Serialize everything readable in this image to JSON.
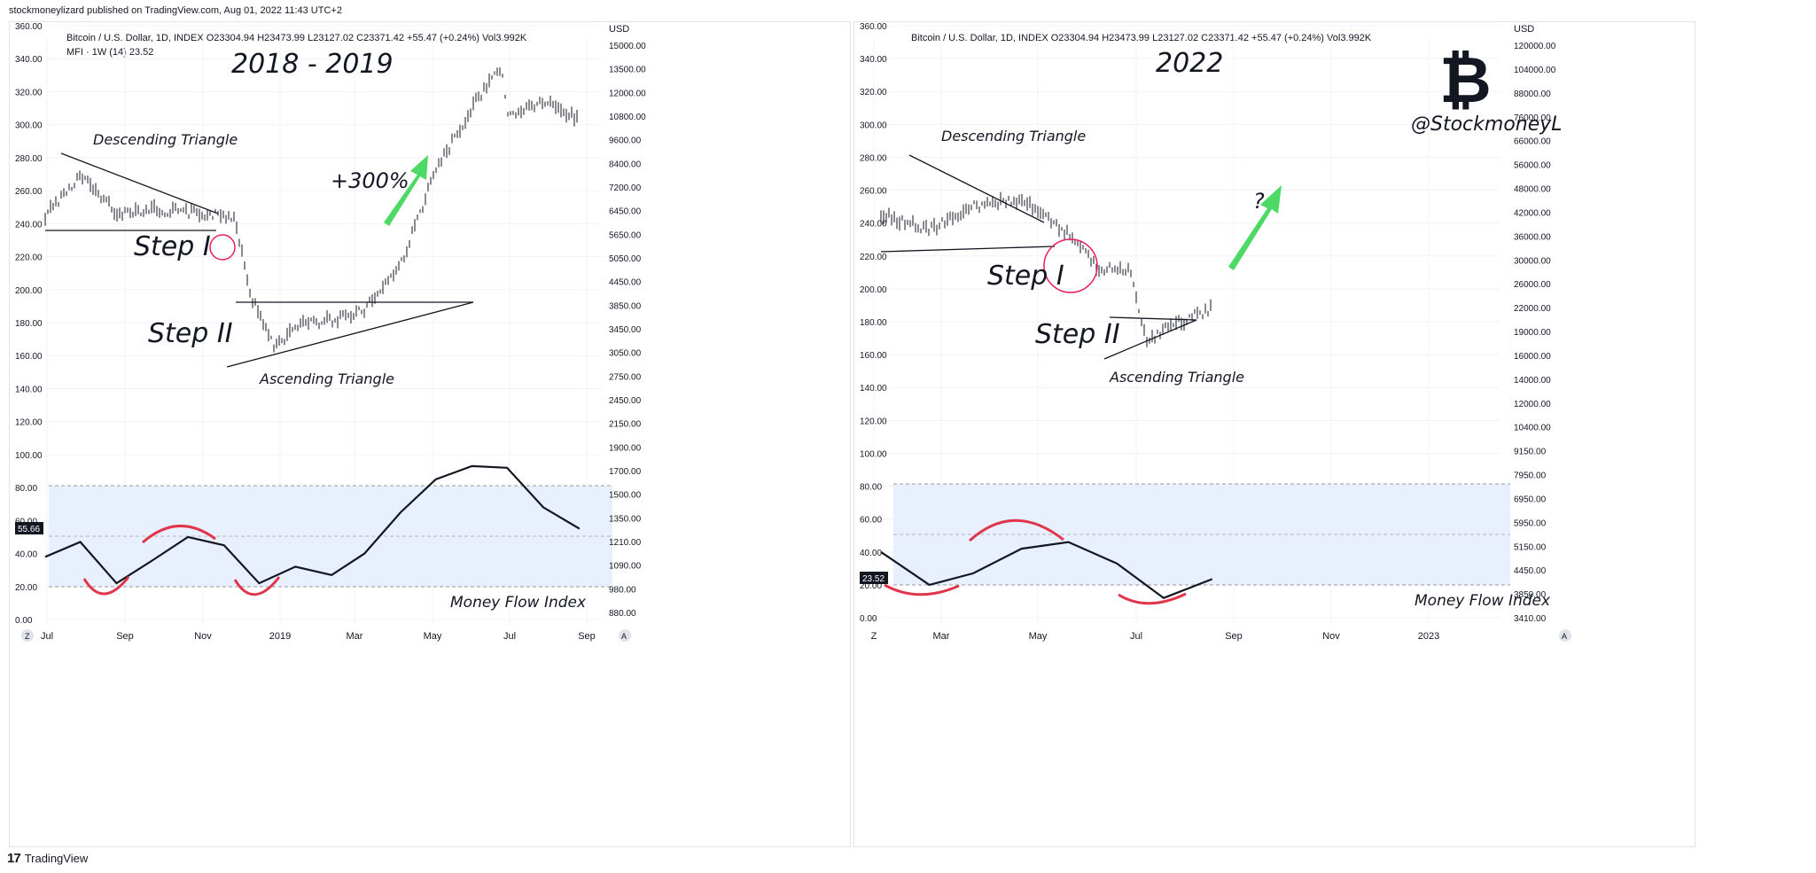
{
  "header": {
    "published": "stockmoneylizard published on TradingView.com, Aug 01, 2022 11:43 UTC+2"
  },
  "footer": {
    "brand": "TradingView",
    "logo_icon": "tradingview-logo-icon"
  },
  "colors": {
    "candle": "#131722",
    "mfi_band": "#e8f0fe",
    "red_arc": "#e0354a",
    "circle": "#e91e63",
    "arrow_green": "#4cd964",
    "axis_text": "#131722",
    "grid": "#f0f3fa"
  },
  "left_chart": {
    "info_line": "Bitcoin / U.S. Dollar, 1D, INDEX  O23304.94  H23473.99  L23127.02  C23371.42  +55.47 (+0.24%)  Vol3.992K",
    "mfi_line": "MFI · 1W (14)  23.52",
    "currency": "USD",
    "title": "2018 - 2019",
    "descending_label": "Descending Triangle",
    "ascending_label": "Ascending Triangle",
    "step1": "Step I",
    "step2": "Step II",
    "gain": "+300%",
    "mfi_label": "Money Flow Index",
    "mfi_badge": "55.66",
    "x_ticks": [
      "Jul",
      "Sep",
      "Nov",
      "2019",
      "Mar",
      "May",
      "Jul",
      "Sep"
    ],
    "z_button": "Z",
    "a_button": "A"
  },
  "right_chart": {
    "info_line": "Bitcoin / U.S. Dollar, 1D, INDEX  O23304.94  H23473.99  L23127.02  C23371.42  +55.47 (+0.24%)  Vol3.992K",
    "currency": "USD",
    "title": "2022",
    "handle": "@StockmoneyL",
    "descending_label": "Descending Triangle",
    "ascending_label": "Ascending Triangle",
    "step1": "Step I",
    "step2": "Step II",
    "question": "?",
    "mfi_label": "Money Flow Index",
    "mfi_badge": "23.52",
    "x_ticks": [
      "Z",
      "Mar",
      "May",
      "Jul",
      "Sep",
      "Nov",
      "2023"
    ],
    "a_button": "A",
    "bitcoin_icon": "bitcoin-logo-icon"
  },
  "chart_data": [
    {
      "type": "line",
      "title": "2018 - 2019",
      "left_axis": {
        "ticks": [
          "360.00",
          "340.00",
          "320.00",
          "300.00",
          "280.00",
          "260.00",
          "240.00",
          "220.00",
          "200.00",
          "180.00",
          "160.00",
          "140.00",
          "120.00",
          "100.00",
          "80.00",
          "60.00",
          "40.00",
          "20.00",
          "0.00"
        ],
        "ylim": [
          0,
          360
        ]
      },
      "right_axis": {
        "label": "USD",
        "scale": "log",
        "ticks": [
          "15000.00",
          "13500.00",
          "12000.00",
          "10800.00",
          "9600.00",
          "8400.00",
          "7200.00",
          "6450.00",
          "5650.00",
          "5050.00",
          "4450.00",
          "3850.00",
          "3450.00",
          "3050.00",
          "2750.00",
          "2450.00",
          "2150.00",
          "1900.00",
          "1700.00",
          "1500.00",
          "1350.00",
          "1210.00",
          "1090.00",
          "980.00",
          "880.00"
        ]
      },
      "x_ticks": [
        "Jul",
        "Sep",
        "Nov",
        "2019",
        "Mar",
        "May",
        "Jul",
        "Sep"
      ],
      "price_series": {
        "name": "",
        "x": [
          "2018-06",
          "2018-07",
          "2018-08",
          "2018-09",
          "2018-10",
          "2018-11-10",
          "2018-11-25",
          "2018-12-15",
          "2019-01",
          "2019-02",
          "2019-03",
          "2019-04-01",
          "2019-05",
          "2019-06",
          "2019-06-26",
          "2019-07",
          "2019-08",
          "2019-09"
        ],
        "y": [
          6400,
          7800,
          6500,
          6600,
          6500,
          6350,
          4200,
          3300,
          3700,
          3800,
          4000,
          5000,
          8000,
          11000,
          13500,
          10500,
          11300,
          10300
        ]
      },
      "mfi_series": {
        "name": "Money Flow Index",
        "x": [
          "2018-06",
          "2018-07",
          "2018-08",
          "2018-09",
          "2018-10",
          "2018-11",
          "2018-12",
          "2019-01",
          "2019-02",
          "2019-03",
          "2019-04",
          "2019-05",
          "2019-06",
          "2019-07",
          "2019-08",
          "2019-09"
        ],
        "y": [
          38,
          47,
          22,
          36,
          50,
          45,
          22,
          32,
          27,
          40,
          65,
          85,
          93,
          92,
          68,
          55
        ]
      },
      "mfi_bands": [
        20,
        80
      ],
      "mfi_last": 55.66
    },
    {
      "type": "line",
      "title": "2022",
      "left_axis": {
        "ticks": [
          "360.00",
          "340.00",
          "320.00",
          "300.00",
          "280.00",
          "260.00",
          "240.00",
          "220.00",
          "200.00",
          "180.00",
          "160.00",
          "140.00",
          "120.00",
          "100.00",
          "80.00",
          "60.00",
          "40.00",
          "20.00",
          "0.00"
        ],
        "ylim": [
          0,
          360
        ]
      },
      "right_axis": {
        "label": "USD",
        "scale": "log",
        "ticks": [
          "120000.00",
          "104000.00",
          "88000.00",
          "76000.00",
          "66000.00",
          "56000.00",
          "48000.00",
          "42000.00",
          "36000.00",
          "30000.00",
          "26000.00",
          "22000.00",
          "19000.00",
          "16000.00",
          "14000.00",
          "12000.00",
          "10400.00",
          "9150.00",
          "7950.00",
          "6950.00",
          "5950.00",
          "5150.00",
          "4450.00",
          "3850.00",
          "3410.00"
        ]
      },
      "x_ticks": [
        "Mar",
        "May",
        "Jul",
        "Sep",
        "Nov",
        "2023"
      ],
      "price_series": {
        "name": "",
        "x": [
          "2022-01",
          "2022-02",
          "2022-03",
          "2022-04",
          "2022-05-05",
          "2022-05-20",
          "2022-06-10",
          "2022-06-20",
          "2022-07",
          "2022-08-01"
        ],
        "y": [
          42000,
          38000,
          44000,
          46000,
          36000,
          30000,
          29500,
          19000,
          20500,
          23370
        ]
      },
      "mfi_series": {
        "name": "Money Flow Index",
        "x": [
          "2022-01",
          "2022-02",
          "2022-03",
          "2022-04",
          "2022-05",
          "2022-06",
          "2022-07",
          "2022-08"
        ],
        "y": [
          40,
          20,
          27,
          42,
          46,
          33,
          12,
          23.52
        ]
      },
      "mfi_bands": [
        20,
        80
      ],
      "mfi_last": 23.52
    }
  ]
}
